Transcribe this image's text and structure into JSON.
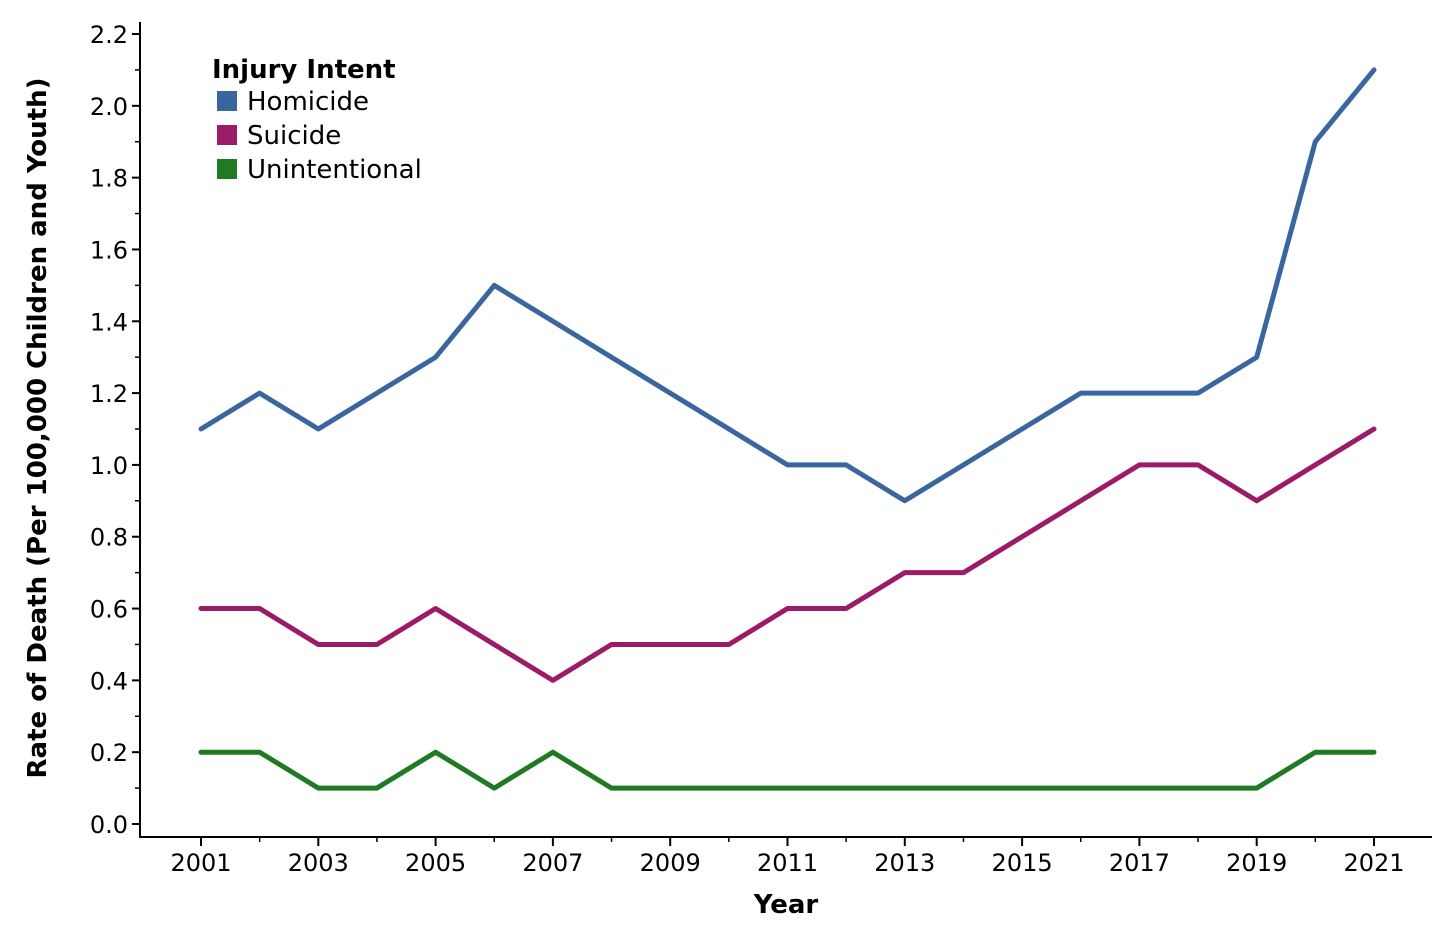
{
  "chart_data": {
    "type": "line",
    "xlabel": "Year",
    "ylabel": "Rate of Death (Per 100,000 Children and Youth)",
    "x": [
      2001,
      2002,
      2003,
      2004,
      2005,
      2006,
      2007,
      2008,
      2009,
      2010,
      2011,
      2012,
      2013,
      2014,
      2015,
      2016,
      2017,
      2018,
      2019,
      2020,
      2021
    ],
    "x_tick_labels": [
      "2001",
      "2003",
      "2005",
      "2007",
      "2009",
      "2011",
      "2013",
      "2015",
      "2017",
      "2019",
      "2021"
    ],
    "y_tick_labels": [
      "0.0",
      "0.2",
      "0.4",
      "0.6",
      "0.8",
      "1.0",
      "1.2",
      "1.4",
      "1.6",
      "1.8",
      "2.0",
      "2.2"
    ],
    "xlim": [
      2001,
      2021
    ],
    "ylim": [
      0,
      2.2
    ],
    "grid": false,
    "legend": {
      "title": "Injury Intent",
      "placement": "top-left"
    },
    "series": [
      {
        "name": "Homicide",
        "color": "#3a66a0",
        "values": [
          1.1,
          1.2,
          1.1,
          1.2,
          1.3,
          1.5,
          1.4,
          1.3,
          1.2,
          1.1,
          1.0,
          1.0,
          0.9,
          1.0,
          1.1,
          1.2,
          1.2,
          1.2,
          1.3,
          1.9,
          2.1
        ]
      },
      {
        "name": "Suicide",
        "color": "#9b1b67",
        "values": [
          0.6,
          0.6,
          0.5,
          0.5,
          0.6,
          0.5,
          0.4,
          0.5,
          0.5,
          0.5,
          0.6,
          0.6,
          0.7,
          0.7,
          0.8,
          0.9,
          1.0,
          1.0,
          0.9,
          1.0,
          1.1
        ]
      },
      {
        "name": "Unintentional",
        "color": "#1f7a22",
        "values": [
          0.2,
          0.2,
          0.1,
          0.1,
          0.2,
          0.1,
          0.2,
          0.1,
          0.1,
          0.1,
          0.1,
          0.1,
          0.1,
          0.1,
          0.1,
          0.1,
          0.1,
          0.1,
          0.1,
          0.2,
          0.2
        ]
      }
    ]
  }
}
